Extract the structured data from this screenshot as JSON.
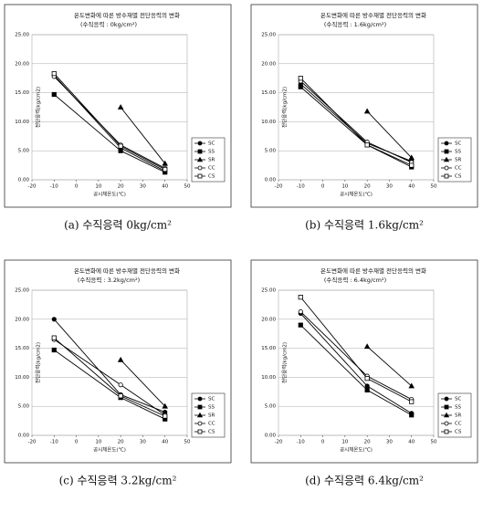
{
  "chart_data": [
    {
      "type": "line",
      "title": "온도변화에 따른 방수재별 전단응력의 변화",
      "subtitle": "(수직응력 : 0kg/cm²)",
      "x_label": "공시체온도(℃)",
      "y_label": "전단응력(kg/cm2)",
      "caption": "(a) 수직응력 0kg/cm²",
      "x": [
        -10,
        20,
        40
      ],
      "xlim": [
        -20,
        50
      ],
      "xticks": [
        -20,
        -10,
        0,
        10,
        20,
        30,
        40,
        50
      ],
      "ylim": [
        0,
        25
      ],
      "yticks": [
        {
          "value": 0,
          "label": "0.00"
        },
        {
          "value": 5,
          "label": "5.00"
        },
        {
          "value": 10,
          "label": "10.00"
        },
        {
          "value": 15,
          "label": "15.00"
        },
        {
          "value": 20,
          "label": "20.00"
        },
        {
          "value": 25,
          "label": "25.00"
        }
      ],
      "grid": true,
      "series": [
        {
          "name": "SC",
          "color": "#000000",
          "marker": "circle",
          "filled": true,
          "values": [
            18.0,
            5.5,
            1.5
          ]
        },
        {
          "name": "SS",
          "color": "#000000",
          "marker": "square",
          "filled": true,
          "values": [
            14.7,
            5.0,
            1.3
          ]
        },
        {
          "name": "SR",
          "color": "#000000",
          "marker": "triangle",
          "filled": true,
          "values": [
            null,
            12.5,
            2.8
          ]
        },
        {
          "name": "CC",
          "color": "#000000",
          "marker": "circle",
          "filled": false,
          "values": [
            17.8,
            6.0,
            2.0
          ]
        },
        {
          "name": "CS",
          "color": "#000000",
          "marker": "square",
          "filled": false,
          "values": [
            18.3,
            5.8,
            1.8
          ]
        }
      ]
    },
    {
      "type": "line",
      "title": "온도변화에 따른 방수재별 전단응력의 변화",
      "subtitle": "(수직응력 : 1.6kg/cm²)",
      "x_label": "공시체온도(℃)",
      "y_label": "전단응력(kg/cm2)",
      "caption": "(b) 수직응력 1.6kg/cm²",
      "x": [
        -10,
        20,
        40
      ],
      "xlim": [
        -20,
        50
      ],
      "xticks": [
        -20,
        -10,
        0,
        10,
        20,
        30,
        40,
        50
      ],
      "ylim": [
        0,
        25
      ],
      "yticks": [
        {
          "value": 0,
          "label": "0.00"
        },
        {
          "value": 5,
          "label": "5.00"
        },
        {
          "value": 10,
          "label": "10.00"
        },
        {
          "value": 15,
          "label": "15.00"
        },
        {
          "value": 20,
          "label": "20.00"
        },
        {
          "value": 25,
          "label": "25.00"
        }
      ],
      "grid": true,
      "series": [
        {
          "name": "SC",
          "color": "#000000",
          "marker": "circle",
          "filled": true,
          "values": [
            16.5,
            6.3,
            3.2
          ]
        },
        {
          "name": "SS",
          "color": "#000000",
          "marker": "square",
          "filled": true,
          "values": [
            16.0,
            6.0,
            2.2
          ]
        },
        {
          "name": "SR",
          "color": "#000000",
          "marker": "triangle",
          "filled": true,
          "values": [
            null,
            11.8,
            3.8
          ]
        },
        {
          "name": "CC",
          "color": "#000000",
          "marker": "circle",
          "filled": false,
          "values": [
            17.0,
            6.5,
            3.0
          ]
        },
        {
          "name": "CS",
          "color": "#000000",
          "marker": "square",
          "filled": false,
          "values": [
            17.5,
            6.0,
            2.5
          ]
        }
      ]
    },
    {
      "type": "line",
      "title": "온도변화에 따른 방수재별 전단응력의 변화",
      "subtitle": "(수직응력 : 3.2kg/cm²)",
      "x_label": "공시체온도(℃)",
      "y_label": "전단응력(kg/cm2)",
      "caption": "(c) 수직응력 3.2kg/cm²",
      "x": [
        -10,
        20,
        40
      ],
      "xlim": [
        -20,
        50
      ],
      "xticks": [
        -20,
        -10,
        0,
        10,
        20,
        30,
        40,
        50
      ],
      "ylim": [
        0,
        25
      ],
      "yticks": [
        {
          "value": 0,
          "label": "0.00"
        },
        {
          "value": 5,
          "label": "5.00"
        },
        {
          "value": 10,
          "label": "10.00"
        },
        {
          "value": 15,
          "label": "15.00"
        },
        {
          "value": 20,
          "label": "20.00"
        },
        {
          "value": 25,
          "label": "25.00"
        }
      ],
      "grid": true,
      "series": [
        {
          "name": "SC",
          "color": "#000000",
          "marker": "circle",
          "filled": true,
          "values": [
            20.0,
            7.0,
            4.0
          ]
        },
        {
          "name": "SS",
          "color": "#000000",
          "marker": "square",
          "filled": true,
          "values": [
            14.7,
            6.5,
            2.8
          ]
        },
        {
          "name": "SR",
          "color": "#000000",
          "marker": "triangle",
          "filled": true,
          "values": [
            null,
            13.0,
            5.0
          ]
        },
        {
          "name": "CC",
          "color": "#000000",
          "marker": "circle",
          "filled": false,
          "values": [
            16.5,
            8.7,
            3.5
          ]
        },
        {
          "name": "CS",
          "color": "#000000",
          "marker": "square",
          "filled": false,
          "values": [
            16.8,
            6.8,
            3.3
          ]
        }
      ]
    },
    {
      "type": "line",
      "title": "온도변화에 따른 방수재별 전단응력의 변화",
      "subtitle": "(수직응력 : 6.4kg/cm²)",
      "x_label": "공시체온도(℃)",
      "y_label": "전단응력(kg/cm2)",
      "caption": "(d) 수직응력 6.4kg/cm²",
      "x": [
        -10,
        20,
        40
      ],
      "xlim": [
        -20,
        50
      ],
      "xticks": [
        -20,
        -10,
        0,
        10,
        20,
        30,
        40,
        50
      ],
      "ylim": [
        0,
        25
      ],
      "yticks": [
        {
          "value": 0,
          "label": "0.00"
        },
        {
          "value": 5,
          "label": "5.00"
        },
        {
          "value": 10,
          "label": "10.00"
        },
        {
          "value": 15,
          "label": "15.00"
        },
        {
          "value": 20,
          "label": "20.00"
        },
        {
          "value": 25,
          "label": "25.00"
        }
      ],
      "grid": true,
      "series": [
        {
          "name": "SC",
          "color": "#000000",
          "marker": "circle",
          "filled": true,
          "values": [
            21.0,
            8.5,
            3.8
          ]
        },
        {
          "name": "SS",
          "color": "#000000",
          "marker": "square",
          "filled": true,
          "values": [
            19.0,
            7.8,
            3.5
          ]
        },
        {
          "name": "SR",
          "color": "#000000",
          "marker": "triangle",
          "filled": true,
          "values": [
            null,
            15.3,
            8.5
          ]
        },
        {
          "name": "CC",
          "color": "#000000",
          "marker": "circle",
          "filled": false,
          "values": [
            21.3,
            10.2,
            6.2
          ]
        },
        {
          "name": "CS",
          "color": "#000000",
          "marker": "square",
          "filled": false,
          "values": [
            23.8,
            9.8,
            5.8
          ]
        }
      ]
    }
  ]
}
